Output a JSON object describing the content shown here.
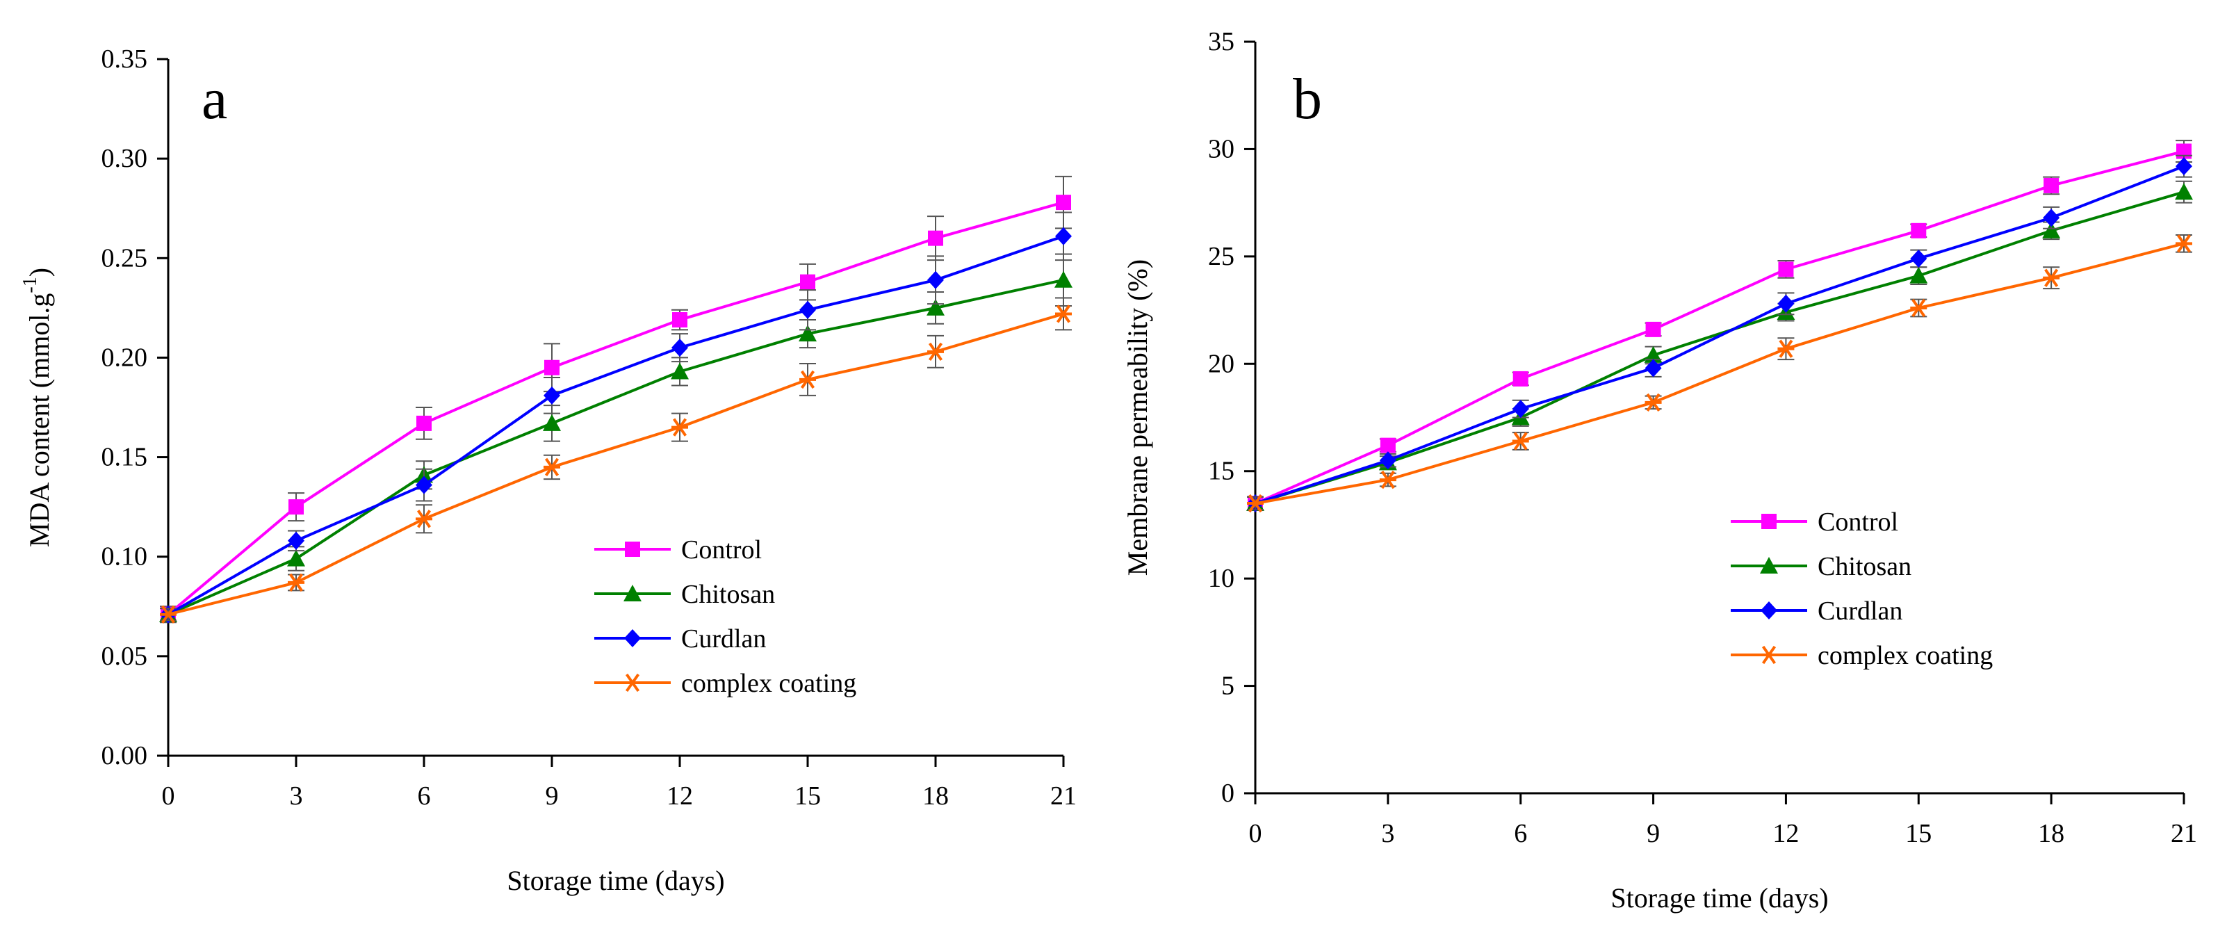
{
  "chart_data": [
    {
      "type": "line",
      "panel_label": "a",
      "xlabel": "Storage time (days)",
      "ylabel": "MDA content (mmol.g",
      "ylabel_sup": "-1",
      "ylabel_suffix": ")",
      "x": [
        0,
        3,
        6,
        9,
        12,
        15,
        18,
        21
      ],
      "xticks": [
        "0",
        "3",
        "6",
        "9",
        "12",
        "15",
        "18",
        "21"
      ],
      "ylim": [
        0,
        0.35
      ],
      "yticks": [
        "0.00",
        "0.05",
        "0.10",
        "0.15",
        "0.20",
        "0.25",
        "0.30",
        "0.35"
      ],
      "legend_position": "lower-right",
      "series": [
        {
          "name": "Control",
          "color": "#FF00FF",
          "marker": "square",
          "values": [
            0.071,
            0.125,
            0.167,
            0.195,
            0.219,
            0.238,
            0.26,
            0.278
          ],
          "errors": [
            0.004,
            0.007,
            0.008,
            0.012,
            0.005,
            0.009,
            0.011,
            0.013
          ]
        },
        {
          "name": "Chitosan",
          "color": "#008000",
          "marker": "triangle",
          "values": [
            0.071,
            0.099,
            0.141,
            0.167,
            0.193,
            0.212,
            0.225,
            0.239
          ],
          "errors": [
            0.003,
            0.006,
            0.007,
            0.009,
            0.007,
            0.007,
            0.008,
            0.013
          ]
        },
        {
          "name": "Curdlan",
          "color": "#0000FF",
          "marker": "diamond",
          "values": [
            0.071,
            0.108,
            0.136,
            0.181,
            0.205,
            0.224,
            0.239,
            0.261
          ],
          "errors": [
            0.003,
            0.005,
            0.008,
            0.009,
            0.007,
            0.01,
            0.012,
            0.012
          ]
        },
        {
          "name": "complex coating",
          "color": "#FF6600",
          "marker": "asterisk",
          "values": [
            0.071,
            0.087,
            0.119,
            0.145,
            0.165,
            0.189,
            0.203,
            0.222
          ],
          "errors": [
            0.003,
            0.004,
            0.007,
            0.006,
            0.007,
            0.008,
            0.008,
            0.008
          ]
        }
      ]
    },
    {
      "type": "line",
      "panel_label": "b",
      "xlabel": "Storage time (days)",
      "ylabel": "Membrane permeability   (%)",
      "x": [
        0,
        3,
        6,
        9,
        12,
        15,
        18,
        21
      ],
      "xticks": [
        "0",
        "3",
        "6",
        "9",
        "12",
        "15",
        "18",
        "21"
      ],
      "ylim": [
        0,
        35
      ],
      "yticks": [
        "0",
        "5",
        "10",
        "15",
        "20",
        "25",
        "30",
        "35"
      ],
      "legend_position": "lower-right",
      "series": [
        {
          "name": "Control",
          "color": "#FF00FF",
          "marker": "square",
          "values": [
            13.5,
            16.2,
            19.3,
            21.6,
            24.4,
            26.2,
            28.3,
            29.9
          ],
          "errors": [
            0.3,
            0.3,
            0.3,
            0.3,
            0.4,
            0.3,
            0.4,
            0.5
          ]
        },
        {
          "name": "Chitosan",
          "color": "#008000",
          "marker": "triangle",
          "values": [
            13.5,
            15.4,
            17.5,
            20.4,
            22.4,
            24.1,
            26.2,
            28.0
          ],
          "errors": [
            0.3,
            0.3,
            0.4,
            0.4,
            0.4,
            0.4,
            0.4,
            0.5
          ]
        },
        {
          "name": "Curdlan",
          "color": "#0000FF",
          "marker": "diamond",
          "values": [
            13.5,
            15.5,
            17.9,
            19.8,
            22.8,
            24.9,
            26.8,
            29.2
          ],
          "errors": [
            0.3,
            0.3,
            0.4,
            0.4,
            0.5,
            0.4,
            0.5,
            0.5
          ]
        },
        {
          "name": "complex coating",
          "color": "#FF6600",
          "marker": "asterisk",
          "values": [
            13.5,
            14.6,
            16.4,
            18.2,
            20.7,
            22.6,
            24.0,
            25.6
          ],
          "errors": [
            0.3,
            0.3,
            0.4,
            0.3,
            0.5,
            0.4,
            0.5,
            0.4
          ]
        }
      ]
    }
  ]
}
